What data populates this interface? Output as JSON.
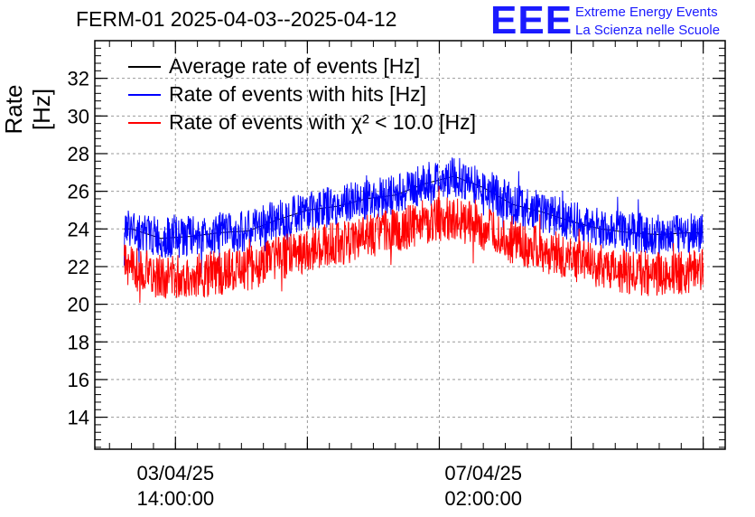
{
  "title": "FERM-01 2025-04-03--2025-04-12",
  "logo": {
    "mark": "EEE",
    "line1": "Extreme Energy Events",
    "line2": "La Scienza nelle Scuole",
    "color": "#1a1aff"
  },
  "chart_data": {
    "type": "line",
    "title": "FERM-01 2025-04-03--2025-04-12",
    "xlabel": "",
    "ylabel": "Rate [Hz]",
    "ylim": [
      12.3,
      34
    ],
    "yticks": [
      14,
      16,
      18,
      20,
      22,
      24,
      26,
      28,
      30,
      32
    ],
    "xticks": [
      {
        "date": "03/04/25",
        "time": "14:00:00"
      },
      {
        "date": "07/04/25",
        "time": "02:00:00"
      }
    ],
    "grid": true,
    "legend_position": "top-left",
    "x_range": [
      "2025-04-02T16:00:00",
      "2025-04-09T20:00:00"
    ],
    "x": [
      "2025-04-03T02:00:00",
      "2025-04-03T10:00:00",
      "2025-04-03T18:00:00",
      "2025-04-04T02:00:00",
      "2025-04-04T10:00:00",
      "2025-04-04T18:00:00",
      "2025-04-05T02:00:00",
      "2025-04-05T10:00:00",
      "2025-04-05T18:00:00",
      "2025-04-06T02:00:00",
      "2025-04-06T10:00:00",
      "2025-04-06T18:00:00",
      "2025-04-07T02:00:00",
      "2025-04-07T10:00:00",
      "2025-04-07T18:00:00",
      "2025-04-08T02:00:00",
      "2025-04-08T10:00:00",
      "2025-04-08T18:00:00",
      "2025-04-09T02:00:00",
      "2025-04-09T10:00:00"
    ],
    "series": [
      {
        "name": "Average rate of events [Hz]",
        "color": "#000000",
        "values": [
          24.0,
          23.5,
          23.6,
          23.8,
          23.9,
          24.5,
          25.0,
          25.2,
          25.6,
          25.8,
          26.4,
          26.8,
          26.2,
          25.3,
          24.9,
          24.4,
          24.0,
          23.8,
          23.7,
          23.8
        ]
      },
      {
        "name": "Rate of events with hits [Hz]",
        "color": "#0000ff",
        "values": [
          24.0,
          23.5,
          23.6,
          23.8,
          23.9,
          24.5,
          25.0,
          25.2,
          25.6,
          25.8,
          26.4,
          26.8,
          26.2,
          25.3,
          24.9,
          24.4,
          24.0,
          23.8,
          23.7,
          23.8
        ],
        "noise_band": 1.1
      },
      {
        "name": "Rate of events with χ² < 10.0 [Hz]",
        "color": "#ff0000",
        "values": [
          22.0,
          21.4,
          21.5,
          21.7,
          21.9,
          22.4,
          22.9,
          23.2,
          23.6,
          23.9,
          24.4,
          24.6,
          24.0,
          23.3,
          22.9,
          22.4,
          22.0,
          21.7,
          21.6,
          21.8
        ],
        "noise_band": 1.2
      }
    ],
    "legend": [
      {
        "label": "Average rate of events [Hz]",
        "color": "#000000"
      },
      {
        "label": "Rate of events with hits [Hz]",
        "color": "#0000ff"
      },
      {
        "label": "Rate of events with χ² < 10.0 [Hz]",
        "color": "#ff0000"
      }
    ]
  }
}
